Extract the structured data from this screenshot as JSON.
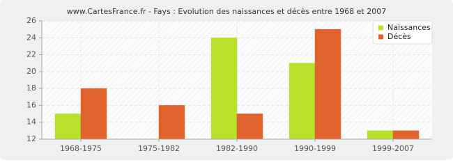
{
  "chart_data": {
    "type": "bar",
    "title": "www.CartesFrance.fr - Fays : Evolution des naissances et décès entre 1968 et 2007",
    "categories": [
      "1968-1975",
      "1975-1982",
      "1982-1990",
      "1990-1999",
      "1999-2007"
    ],
    "series": [
      {
        "name": "Naissances",
        "color": "#b8e02c",
        "values": [
          15,
          12,
          24,
          21,
          13
        ]
      },
      {
        "name": "Décès",
        "color": "#e0632e",
        "values": [
          18,
          16,
          15,
          25,
          13
        ]
      }
    ],
    "ylim": [
      12,
      26
    ],
    "yticks": [
      12,
      14,
      16,
      18,
      20,
      22,
      24,
      26
    ],
    "grid": true,
    "legend": "top-right"
  }
}
